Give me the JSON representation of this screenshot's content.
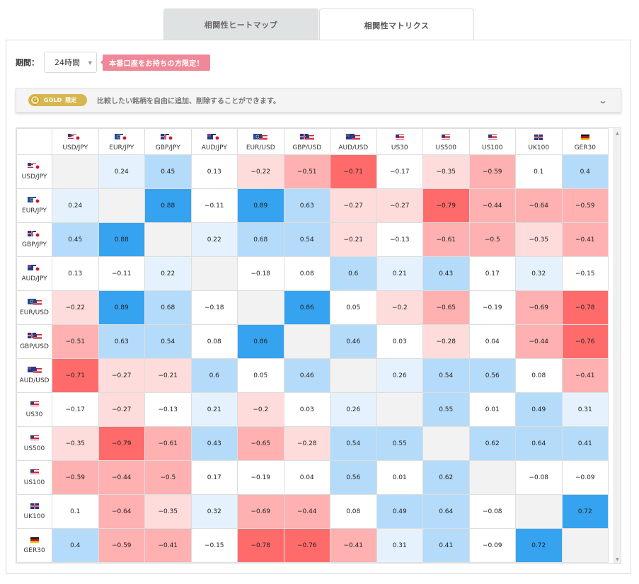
{
  "tabs": [
    {
      "label": "相関性ヒートマップ",
      "active": false
    },
    {
      "label": "相関性マトリクス",
      "active": true
    }
  ],
  "period": {
    "label": "期間：",
    "value": "24時間"
  },
  "promo": {
    "label": "本番口座をお持ちの方限定！"
  },
  "gold": {
    "badge": "GOLD",
    "badge_sub": "限定",
    "text": "比較したい銘柄を自由に追加、削除することができます。"
  },
  "colors": {
    "strong_pos": "#35a3f0",
    "pos": "#b5dbfa",
    "weak_pos": "#e5f2fd",
    "strong_neg": "#ff6b6b",
    "neg": "#ffb1b1",
    "weak_neg": "#ffdcdc",
    "diag": "#f2f2f2"
  },
  "symbols": [
    {
      "label": "USD/JPY",
      "flags": [
        "us",
        "jp"
      ]
    },
    {
      "label": "EUR/JPY",
      "flags": [
        "eu",
        "jp"
      ]
    },
    {
      "label": "GBP/JPY",
      "flags": [
        "gb",
        "jp"
      ]
    },
    {
      "label": "AUD/JPY",
      "flags": [
        "au",
        "jp"
      ]
    },
    {
      "label": "EUR/USD",
      "flags": [
        "eu",
        "us"
      ]
    },
    {
      "label": "GBP/USD",
      "flags": [
        "gb",
        "us"
      ]
    },
    {
      "label": "AUD/USD",
      "flags": [
        "au",
        "us"
      ]
    },
    {
      "label": "US30",
      "flags": [
        "us"
      ]
    },
    {
      "label": "US500",
      "flags": [
        "us"
      ]
    },
    {
      "label": "US100",
      "flags": [
        "us"
      ]
    },
    {
      "label": "UK100",
      "flags": [
        "gb"
      ]
    },
    {
      "label": "GER30",
      "flags": [
        "de"
      ]
    }
  ],
  "matrix": [
    [
      null,
      0.24,
      0.45,
      0.13,
      -0.22,
      -0.51,
      -0.71,
      -0.17,
      -0.35,
      -0.59,
      0.1,
      0.4
    ],
    [
      0.24,
      null,
      0.88,
      -0.11,
      0.89,
      0.63,
      -0.27,
      -0.27,
      -0.79,
      -0.44,
      -0.64,
      -0.59
    ],
    [
      0.45,
      0.88,
      null,
      0.22,
      0.68,
      0.54,
      -0.21,
      -0.13,
      -0.61,
      -0.5,
      -0.35,
      -0.41
    ],
    [
      0.13,
      -0.11,
      0.22,
      null,
      -0.18,
      0.08,
      0.6,
      0.21,
      0.43,
      0.17,
      0.32,
      -0.15
    ],
    [
      -0.22,
      0.89,
      0.68,
      -0.18,
      null,
      0.86,
      0.05,
      -0.2,
      -0.65,
      -0.19,
      -0.69,
      -0.78
    ],
    [
      -0.51,
      0.63,
      0.54,
      0.08,
      0.86,
      null,
      0.46,
      0.03,
      -0.28,
      0.04,
      -0.44,
      -0.76
    ],
    [
      -0.71,
      -0.27,
      -0.21,
      0.6,
      0.05,
      0.46,
      null,
      0.26,
      0.54,
      0.56,
      0.08,
      -0.41
    ],
    [
      -0.17,
      -0.27,
      -0.13,
      0.21,
      -0.2,
      0.03,
      0.26,
      null,
      0.55,
      0.01,
      0.49,
      0.31
    ],
    [
      -0.35,
      -0.79,
      -0.61,
      0.43,
      -0.65,
      -0.28,
      0.54,
      0.55,
      null,
      0.62,
      0.64,
      0.41
    ],
    [
      -0.59,
      -0.44,
      -0.5,
      0.17,
      -0.19,
      0.04,
      0.56,
      0.01,
      0.62,
      null,
      -0.08,
      -0.09
    ],
    [
      0.1,
      -0.64,
      -0.35,
      0.32,
      -0.69,
      -0.44,
      0.08,
      0.49,
      0.64,
      -0.08,
      null,
      0.72
    ],
    [
      0.4,
      -0.59,
      -0.41,
      -0.15,
      -0.78,
      -0.76,
      -0.41,
      0.31,
      0.41,
      -0.09,
      0.72,
      null
    ]
  ]
}
